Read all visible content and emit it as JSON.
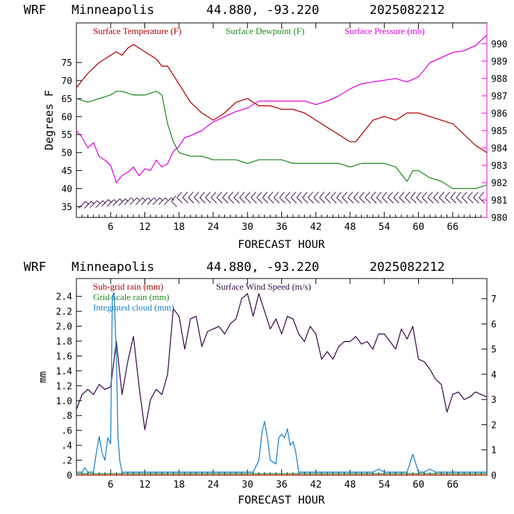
{
  "charts": [
    {
      "header": {
        "model": "WRF",
        "station": "Minneapolis",
        "coords": "44.880, -93.220",
        "init": "2025082212"
      },
      "legend": [
        {
          "label": "Surface Temperature (F)",
          "color": "#b00000"
        },
        {
          "label": "Surface Dewpoint (F)",
          "color": "#1e8a1e"
        },
        {
          "label": "Surface Pressure (mb)",
          "color": "#e000e0"
        }
      ],
      "ylabel": "Degrees F",
      "xlabel": "FORECAST HOUR",
      "x_ticks": [
        "6",
        "12",
        "18",
        "24",
        "30",
        "36",
        "42",
        "48",
        "54",
        "60",
        "66"
      ],
      "y_left_ticks": [
        "35",
        "40",
        "45",
        "50",
        "55",
        "60",
        "65",
        "70",
        "75"
      ],
      "y_right_ticks": [
        "980",
        "981",
        "982",
        "983",
        "984",
        "985",
        "986",
        "987",
        "988",
        "989",
        "990"
      ]
    },
    {
      "header": {
        "model": "WRF",
        "station": "Minneapolis",
        "coords": "44.880, -93.220",
        "init": "2025082212"
      },
      "legend": [
        {
          "label": "Sub-grid rain (mm)",
          "color": "#b00000"
        },
        {
          "label": "Grid-scale rain (mm)",
          "color": "#1e8a1e"
        },
        {
          "label": "Integrated cloud (mm)",
          "color": "#1a7fd0"
        },
        {
          "label": "Surface Wind Speed (m/s)",
          "color": "#3a0a4a"
        }
      ],
      "ylabel": "mm",
      "xlabel": "FORECAST HOUR",
      "x_ticks": [
        "6",
        "12",
        "18",
        "24",
        "30",
        "36",
        "42",
        "48",
        "54",
        "60",
        "66"
      ],
      "y_left_ticks": [
        "0",
        ".2",
        ".4",
        ".6",
        ".8",
        "1.0",
        "1.2",
        "1.4",
        "1.6",
        "1.8",
        "2.0",
        "2.2",
        "2.4"
      ],
      "y_right_ticks": [
        "0",
        "1",
        "2",
        "3",
        "4",
        "5",
        "6",
        "7"
      ]
    }
  ],
  "colors": {
    "temperature": "#b00000",
    "dewpoint": "#1e8a1e",
    "pressure": "#e000e0",
    "subgrid": "#b00000",
    "gridscale": "#1e8a1e",
    "cloud": "#1a7fd0",
    "wind": "#3a0a4a",
    "barb": "#3a0a4a"
  },
  "chart_data": [
    {
      "type": "line",
      "xlim": [
        0,
        72
      ],
      "ylim_left": [
        32,
        86
      ],
      "ylim_right": [
        980,
        991.2
      ],
      "series": [
        {
          "name": "Surface Temperature (F)",
          "axis": "left",
          "x": [
            0,
            2,
            4,
            6,
            7,
            8,
            9,
            10,
            12,
            14,
            15,
            16,
            18,
            20,
            22,
            24,
            26,
            28,
            30,
            32,
            34,
            36,
            38,
            40,
            42,
            44,
            46,
            48,
            49,
            50,
            52,
            54,
            56,
            57,
            58,
            60,
            62,
            64,
            66,
            68,
            70,
            72
          ],
          "y": [
            68,
            72,
            75,
            77,
            78,
            77,
            79,
            80,
            78,
            76,
            74,
            74,
            69,
            64,
            61,
            59,
            61,
            64,
            65,
            63,
            63,
            62,
            62,
            61,
            59,
            57,
            55,
            53,
            53,
            55,
            59,
            60,
            59,
            60,
            61,
            61,
            60,
            59,
            58,
            55,
            52,
            50
          ]
        },
        {
          "name": "Surface Dewpoint (F)",
          "axis": "left",
          "x": [
            0,
            2,
            4,
            6,
            7,
            8,
            10,
            12,
            14,
            15,
            16,
            17,
            18,
            20,
            22,
            24,
            26,
            28,
            30,
            32,
            34,
            36,
            38,
            40,
            42,
            44,
            46,
            48,
            50,
            52,
            54,
            56,
            57,
            58,
            59,
            60,
            62,
            64,
            66,
            68,
            70,
            72
          ],
          "y": [
            65,
            64,
            65,
            66,
            67,
            67,
            66,
            66,
            67,
            66,
            58,
            53,
            50,
            49,
            49,
            48,
            48,
            48,
            47,
            48,
            48,
            48,
            47,
            47,
            47,
            47,
            47,
            46,
            47,
            47,
            47,
            46,
            44,
            42,
            45,
            45,
            43,
            42,
            40,
            40,
            40,
            41
          ]
        },
        {
          "name": "Surface Pressure (mb)",
          "axis": "right",
          "x": [
            0,
            1,
            2,
            3,
            4,
            5,
            6,
            7,
            8,
            9,
            10,
            11,
            12,
            13,
            14,
            15,
            16,
            17,
            18,
            19,
            20,
            22,
            24,
            26,
            28,
            30,
            32,
            34,
            36,
            38,
            40,
            42,
            44,
            46,
            48,
            50,
            52,
            54,
            56,
            58,
            60,
            62,
            64,
            66,
            68,
            70,
            72
          ],
          "y": [
            985.0,
            984.6,
            984.0,
            984.3,
            983.5,
            983.3,
            983.0,
            982.0,
            982.4,
            982.6,
            982.9,
            982.4,
            982.8,
            982.7,
            983.3,
            982.9,
            983.1,
            983.8,
            984.1,
            984.6,
            984.7,
            985.0,
            985.5,
            985.8,
            986.1,
            986.3,
            986.7,
            986.7,
            986.7,
            986.7,
            986.7,
            986.5,
            986.7,
            987.0,
            987.4,
            987.7,
            987.8,
            987.9,
            988.0,
            987.8,
            988.1,
            988.9,
            989.2,
            989.5,
            989.6,
            989.9,
            990.5
          ]
        }
      ],
      "wind_barbs": {
        "x": [
          1,
          2,
          3,
          4,
          5,
          6,
          7,
          8,
          9,
          10,
          11,
          12,
          13,
          14,
          15,
          16,
          17,
          18,
          19,
          20,
          21,
          22,
          23,
          24,
          25,
          26,
          27,
          28,
          29,
          30,
          31,
          32,
          33,
          34,
          35,
          36,
          37,
          38,
          39,
          40,
          41,
          42,
          43,
          44,
          45,
          46,
          47,
          48,
          49,
          50,
          51,
          52,
          53,
          54,
          55,
          56,
          57,
          58,
          59,
          60,
          61,
          62,
          63,
          64,
          65,
          66,
          67,
          68,
          69,
          70,
          71
        ],
        "level": [
          35.5,
          35.5,
          35.7,
          35.7,
          36,
          36,
          36.2,
          36.2,
          36.5,
          36.5,
          36.5,
          36.5,
          36.5,
          36.5,
          36.5,
          36.5,
          36.5,
          37.5,
          37.5,
          37.5,
          37.5,
          37.5,
          37.5,
          37.5,
          37.5,
          37.5,
          37.5,
          37.5,
          37.5,
          37.5,
          37.5,
          37.5,
          37.5,
          37.5,
          37.5,
          37.5,
          37.5,
          37.5,
          37.5,
          37.5,
          37.5,
          37.5,
          37.5,
          37.5,
          37.5,
          37.5,
          37.5,
          37.5,
          37.5,
          37.5,
          37.5,
          37.5,
          37.5,
          37.5,
          37.5,
          37.5,
          37.5,
          37.5,
          37.5,
          37.5,
          37.5,
          37.5,
          37.5,
          37.5,
          37.5,
          37.5,
          37.5,
          37.5,
          37.5,
          37.5,
          37.5
        ]
      }
    },
    {
      "type": "line",
      "xlim": [
        0,
        72
      ],
      "ylim_left": [
        0,
        2.64
      ],
      "ylim_right": [
        0,
        7.8
      ],
      "series": [
        {
          "name": "Surface Wind Speed (m/s)",
          "axis": "right",
          "x": [
            0,
            1,
            2,
            3,
            4,
            5,
            6,
            7,
            8,
            9,
            10,
            11,
            12,
            13,
            14,
            15,
            16,
            17,
            18,
            19,
            20,
            21,
            22,
            23,
            24,
            25,
            26,
            27,
            28,
            29,
            30,
            31,
            32,
            33,
            34,
            35,
            36,
            37,
            38,
            39,
            40,
            41,
            42,
            43,
            44,
            45,
            46,
            47,
            48,
            49,
            50,
            51,
            52,
            53,
            54,
            55,
            56,
            57,
            58,
            59,
            60,
            61,
            62,
            63,
            64,
            65,
            66,
            67,
            68,
            69,
            70,
            71,
            72
          ],
          "y": [
            2.6,
            3.2,
            3.4,
            3.2,
            3.6,
            3.4,
            3.5,
            5.3,
            3.2,
            4.5,
            5.5,
            3.5,
            1.8,
            3.0,
            3.4,
            3.2,
            4.0,
            6.6,
            6.3,
            5.0,
            6.2,
            6.3,
            5.1,
            5.7,
            5.8,
            5.9,
            5.6,
            6.0,
            6.2,
            7.0,
            7.2,
            6.3,
            7.2,
            6.5,
            5.8,
            6.2,
            5.6,
            6.3,
            6.2,
            5.6,
            5.3,
            5.9,
            5.6,
            4.6,
            4.9,
            4.6,
            5.1,
            5.3,
            5.3,
            5.5,
            5.2,
            5.3,
            5.0,
            5.6,
            5.6,
            5.3,
            5.0,
            5.8,
            5.4,
            5.9,
            4.6,
            4.5,
            4.2,
            3.8,
            3.6,
            2.5,
            3.2,
            3.3,
            3.0,
            3.1,
            3.3,
            3.2,
            3.1
          ]
        },
        {
          "name": "Integrated cloud (mm)",
          "axis": "left",
          "x": [
            0,
            1,
            1.5,
            2,
            3,
            3.5,
            4,
            4.5,
            5,
            5.5,
            6,
            6.3,
            6.6,
            7,
            7.3,
            7.6,
            8,
            9,
            12,
            18,
            24,
            30,
            31,
            32,
            32.6,
            33,
            33.5,
            34,
            35,
            35.5,
            36,
            36.5,
            37,
            37.5,
            38,
            38.5,
            39,
            40,
            48,
            52,
            53,
            54,
            55,
            58,
            59,
            60,
            61,
            62,
            63,
            72
          ],
          "y": [
            0.04,
            0.04,
            0.1,
            0.04,
            0.04,
            0.3,
            0.52,
            0.3,
            0.2,
            0.5,
            0.42,
            2.4,
            2.45,
            1.6,
            0.5,
            0.2,
            0.04,
            0.04,
            0.04,
            0.04,
            0.04,
            0.04,
            0.04,
            0.2,
            0.6,
            0.72,
            0.5,
            0.2,
            0.15,
            0.5,
            0.55,
            0.5,
            0.62,
            0.4,
            0.45,
            0.3,
            0.04,
            0.04,
            0.04,
            0.04,
            0.08,
            0.04,
            0.04,
            0.04,
            0.28,
            0.04,
            0.04,
            0.08,
            0.04,
            0.04
          ]
        },
        {
          "name": "Grid-scale rain (mm)",
          "axis": "left",
          "x": [
            0,
            72
          ],
          "y": [
            0.02,
            0.02
          ]
        },
        {
          "name": "Sub-grid rain (mm)",
          "axis": "left",
          "x": [
            0,
            72
          ],
          "y": [
            0,
            0
          ]
        }
      ]
    }
  ]
}
